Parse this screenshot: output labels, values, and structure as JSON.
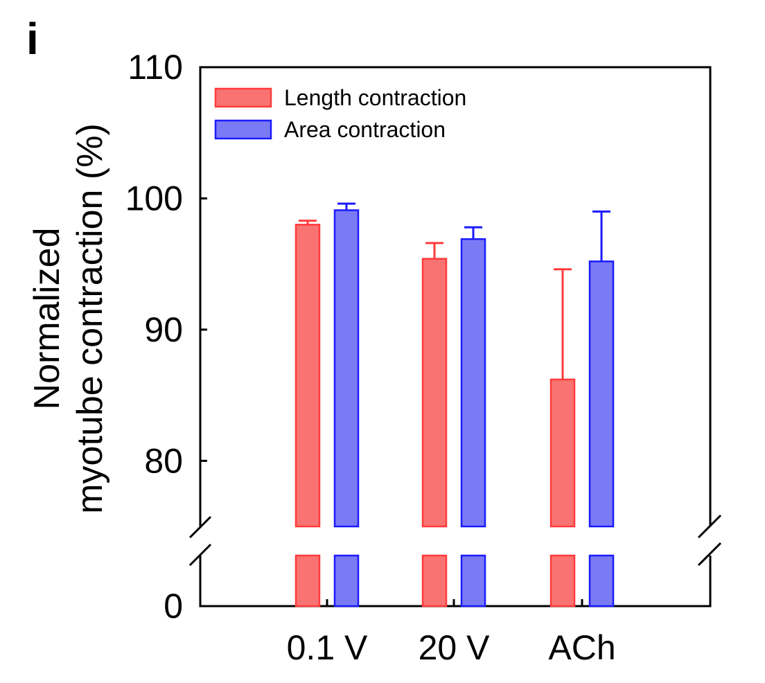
{
  "panel_label": "i",
  "chart_data": {
    "type": "bar",
    "categories": [
      "0.1 V",
      "20 V",
      "ACh"
    ],
    "series": [
      {
        "name": "Length contraction",
        "values": [
          98.0,
          95.4,
          86.2
        ],
        "errors": [
          0.3,
          1.2,
          8.4
        ],
        "color": "#f97373",
        "edge": "#ff3b3b"
      },
      {
        "name": "Area contraction",
        "values": [
          99.1,
          96.9,
          95.2
        ],
        "errors": [
          0.5,
          0.9,
          3.8
        ],
        "color": "#7a7af5",
        "edge": "#1a1aff"
      }
    ],
    "ylabel_line1": "Normalized",
    "ylabel_line2": "myotube contraction (%)",
    "xlabel": "",
    "yticks": [
      0,
      80,
      90,
      100,
      110
    ],
    "ylim": [
      0,
      110
    ],
    "axis_break": true,
    "legend_position": "top-left",
    "grid": false
  }
}
